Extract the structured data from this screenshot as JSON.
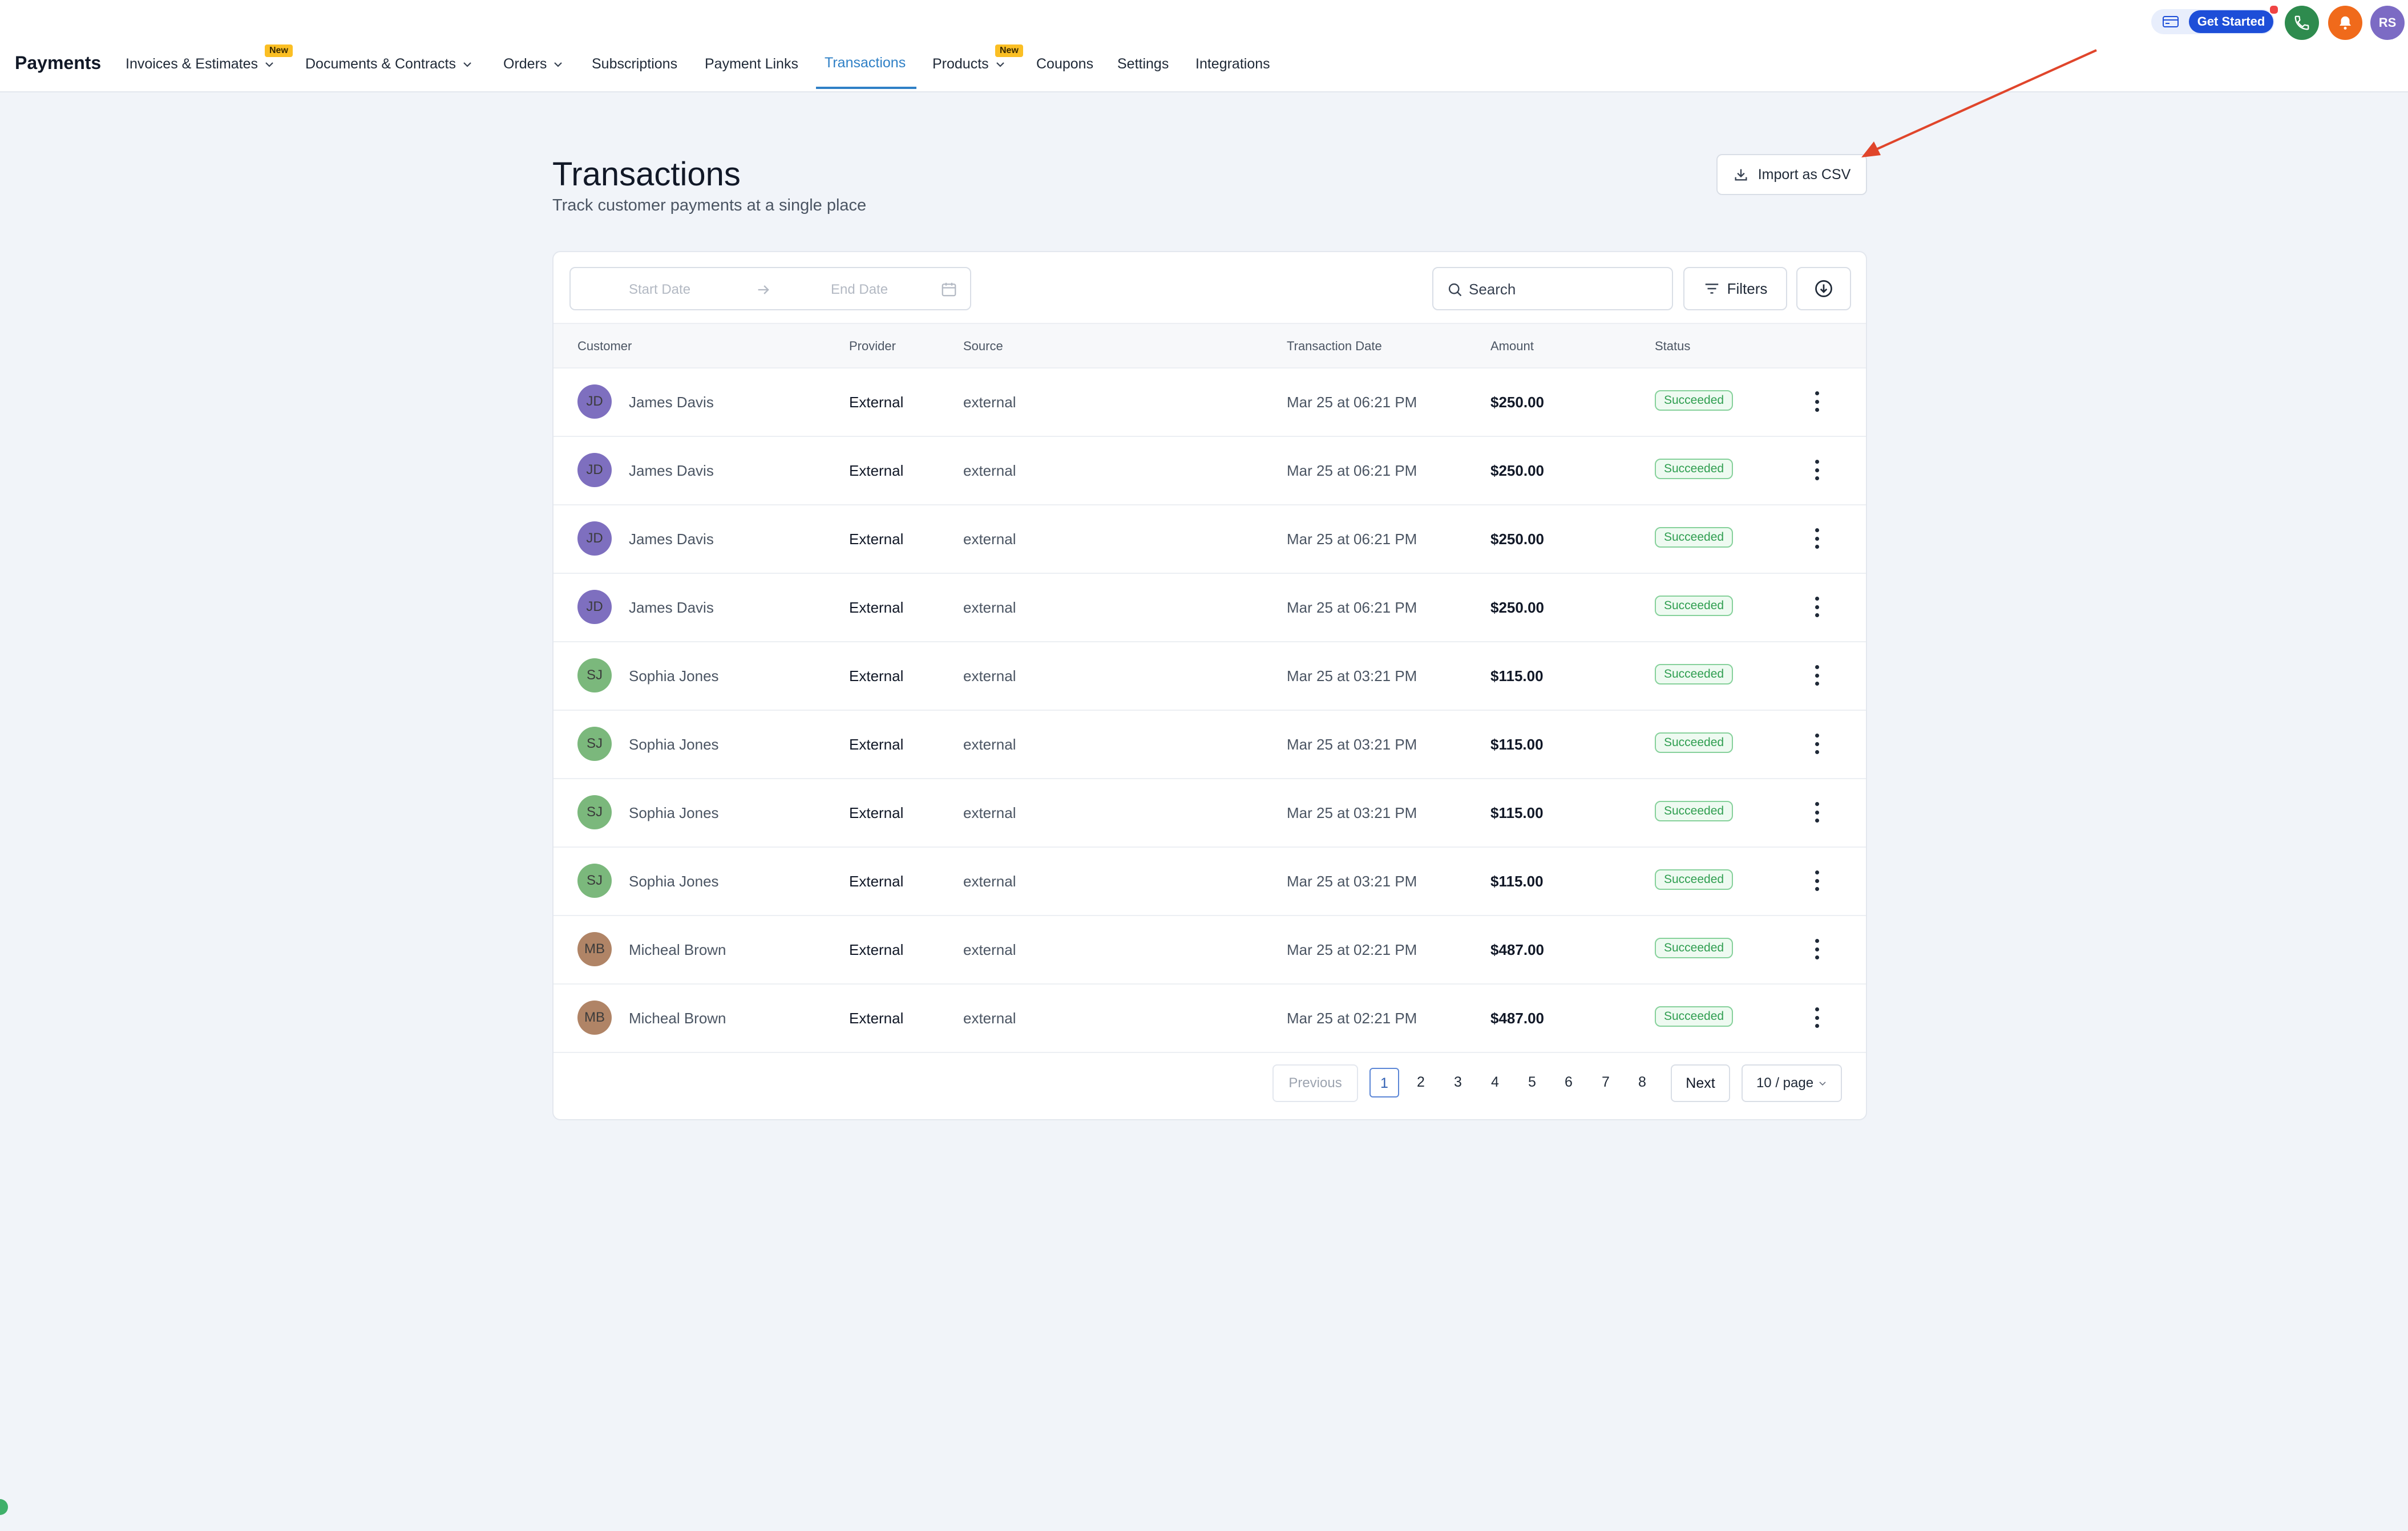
{
  "app": {
    "title": "Payments"
  },
  "nav": {
    "items": [
      {
        "label": "Invoices & Estimates",
        "badge": "New",
        "dropdown": true
      },
      {
        "label": "Documents & Contracts",
        "dropdown": true
      },
      {
        "label": "Orders",
        "dropdown": true
      },
      {
        "label": "Subscriptions"
      },
      {
        "label": "Payment Links"
      },
      {
        "label": "Transactions",
        "active": true
      },
      {
        "label": "Products",
        "badge": "New",
        "dropdown": true
      },
      {
        "label": "Coupons"
      },
      {
        "label": "Settings"
      },
      {
        "label": "Integrations"
      }
    ]
  },
  "topbar": {
    "get_started_label": "Get Started",
    "user_initials": "RS",
    "icons": [
      "credit-card-icon",
      "phone-icon",
      "bell-icon"
    ],
    "colors": {
      "phone": "#2e8b4e",
      "bell": "#f06a1b",
      "avatar": "#7c6bc4",
      "get_started": "#1d4ed8"
    }
  },
  "header": {
    "title": "Transactions",
    "subtitle": "Track customer payments at a single place",
    "import_label": "Import as CSV"
  },
  "toolbar": {
    "start_date_placeholder": "Start Date",
    "end_date_placeholder": "End Date",
    "search_placeholder": "Search",
    "filters_label": "Filters"
  },
  "table": {
    "columns": [
      "Customer",
      "Provider",
      "Source",
      "Transaction Date",
      "Amount",
      "Status"
    ],
    "rows": [
      {
        "initials": "JD",
        "avatar_color": "#7e6fbf",
        "customer": "James Davis",
        "provider": "External",
        "source": "external",
        "date": "Mar 25 at 06:21 PM",
        "amount": "$250.00",
        "status": "Succeeded"
      },
      {
        "initials": "JD",
        "avatar_color": "#7e6fbf",
        "customer": "James Davis",
        "provider": "External",
        "source": "external",
        "date": "Mar 25 at 06:21 PM",
        "amount": "$250.00",
        "status": "Succeeded"
      },
      {
        "initials": "JD",
        "avatar_color": "#7e6fbf",
        "customer": "James Davis",
        "provider": "External",
        "source": "external",
        "date": "Mar 25 at 06:21 PM",
        "amount": "$250.00",
        "status": "Succeeded"
      },
      {
        "initials": "JD",
        "avatar_color": "#7e6fbf",
        "customer": "James Davis",
        "provider": "External",
        "source": "external",
        "date": "Mar 25 at 06:21 PM",
        "amount": "$250.00",
        "status": "Succeeded"
      },
      {
        "initials": "SJ",
        "avatar_color": "#7bb87c",
        "customer": "Sophia Jones",
        "provider": "External",
        "source": "external",
        "date": "Mar 25 at 03:21 PM",
        "amount": "$115.00",
        "status": "Succeeded"
      },
      {
        "initials": "SJ",
        "avatar_color": "#7bb87c",
        "customer": "Sophia Jones",
        "provider": "External",
        "source": "external",
        "date": "Mar 25 at 03:21 PM",
        "amount": "$115.00",
        "status": "Succeeded"
      },
      {
        "initials": "SJ",
        "avatar_color": "#7bb87c",
        "customer": "Sophia Jones",
        "provider": "External",
        "source": "external",
        "date": "Mar 25 at 03:21 PM",
        "amount": "$115.00",
        "status": "Succeeded"
      },
      {
        "initials": "SJ",
        "avatar_color": "#7bb87c",
        "customer": "Sophia Jones",
        "provider": "External",
        "source": "external",
        "date": "Mar 25 at 03:21 PM",
        "amount": "$115.00",
        "status": "Succeeded"
      },
      {
        "initials": "MB",
        "avatar_color": "#b08466",
        "customer": "Micheal Brown",
        "provider": "External",
        "source": "external",
        "date": "Mar 25 at 02:21 PM",
        "amount": "$487.00",
        "status": "Succeeded"
      },
      {
        "initials": "MB",
        "avatar_color": "#b08466",
        "customer": "Micheal Brown",
        "provider": "External",
        "source": "external",
        "date": "Mar 25 at 02:21 PM",
        "amount": "$487.00",
        "status": "Succeeded"
      }
    ]
  },
  "pagination": {
    "previous_label": "Previous",
    "next_label": "Next",
    "pages": [
      "1",
      "2",
      "3",
      "4",
      "5",
      "6",
      "7",
      "8"
    ],
    "current": "1",
    "page_size_label": "10 / page"
  }
}
